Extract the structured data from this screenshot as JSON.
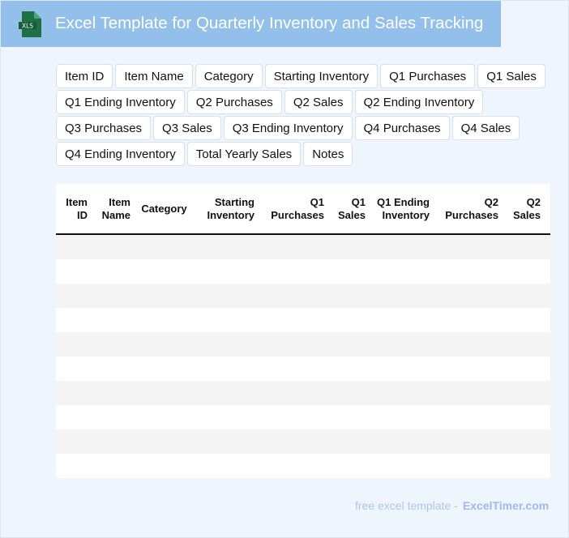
{
  "header": {
    "title": "Excel Template for Quarterly Inventory and Sales Tracking",
    "logo_text": "XLS",
    "logo_color": "#1e7145"
  },
  "fields": [
    "Item ID",
    "Item Name",
    "Category",
    "Starting Inventory",
    "Q1 Purchases",
    "Q1 Sales",
    "Q1 Ending Inventory",
    "Q2 Purchases",
    "Q2 Sales",
    "Q2 Ending Inventory",
    "Q3 Purchases",
    "Q3 Sales",
    "Q3 Ending Inventory",
    "Q4 Purchases",
    "Q4 Sales",
    "Q4 Ending Inventory",
    "Total Yearly Sales",
    "Notes"
  ],
  "table": {
    "headers": [
      "Item ID",
      "Item Name",
      "Category",
      "Starting Inventory",
      "Q1 Purchases",
      "Q1 Sales",
      "Q1 Ending Inventory",
      "Q2 Purchases",
      "Q2 Sales"
    ]
  },
  "footer": {
    "text": "free excel template -",
    "brand": "ExcelTimer.com"
  }
}
